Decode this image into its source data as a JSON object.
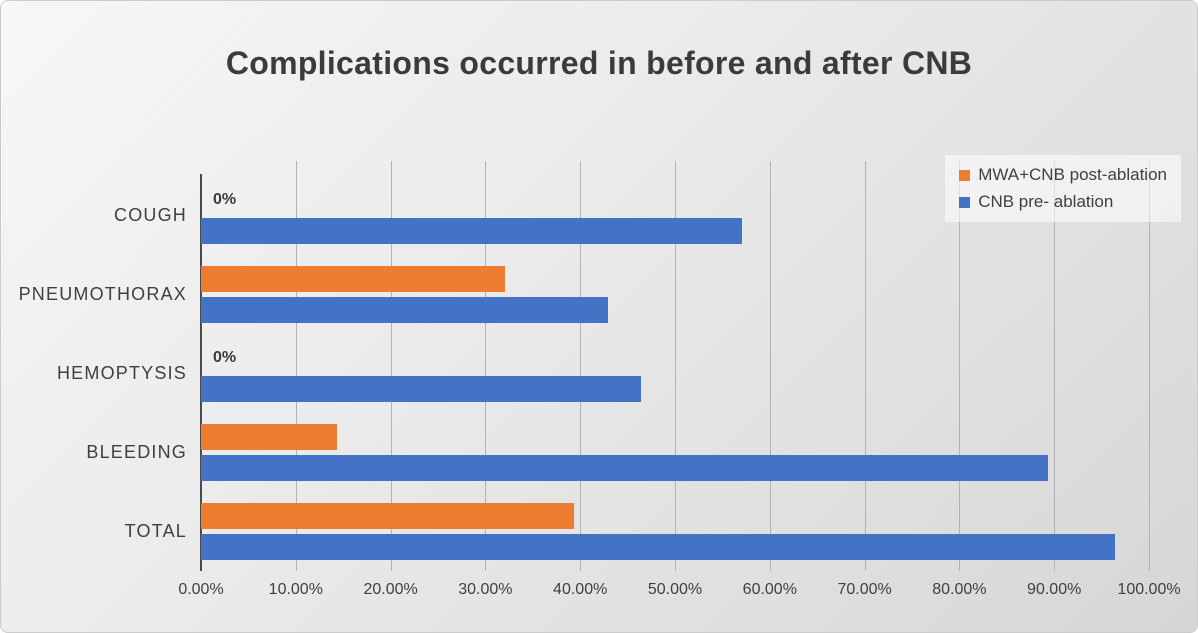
{
  "chart_data": {
    "type": "bar",
    "orientation": "horizontal",
    "title": "Complications occurred in before and after CNB",
    "categories": [
      "COUGH",
      "PNEUMOTHORAX",
      "HEMOPTYSIS",
      "BLEEDING",
      "TOTAL"
    ],
    "series": [
      {
        "name": "MWA+CNB post-ablation",
        "color": "#ED7D31",
        "values": [
          0,
          32.1,
          0,
          14.3,
          39.3
        ]
      },
      {
        "name": "CNB pre- ablation",
        "color": "#4472C4",
        "values": [
          57.1,
          42.9,
          46.4,
          89.3,
          96.4
        ]
      }
    ],
    "xlim": [
      0,
      100
    ],
    "x_ticks": [
      0,
      10,
      20,
      30,
      40,
      50,
      60,
      70,
      80,
      90,
      100
    ],
    "x_tick_labels": [
      "0.00%",
      "10.00%",
      "20.00%",
      "30.00%",
      "40.00%",
      "50.00%",
      "60.00%",
      "70.00%",
      "80.00%",
      "90.00%",
      "100.00%"
    ],
    "zero_label": "0%",
    "grid": true,
    "legend_position": "top-right"
  }
}
